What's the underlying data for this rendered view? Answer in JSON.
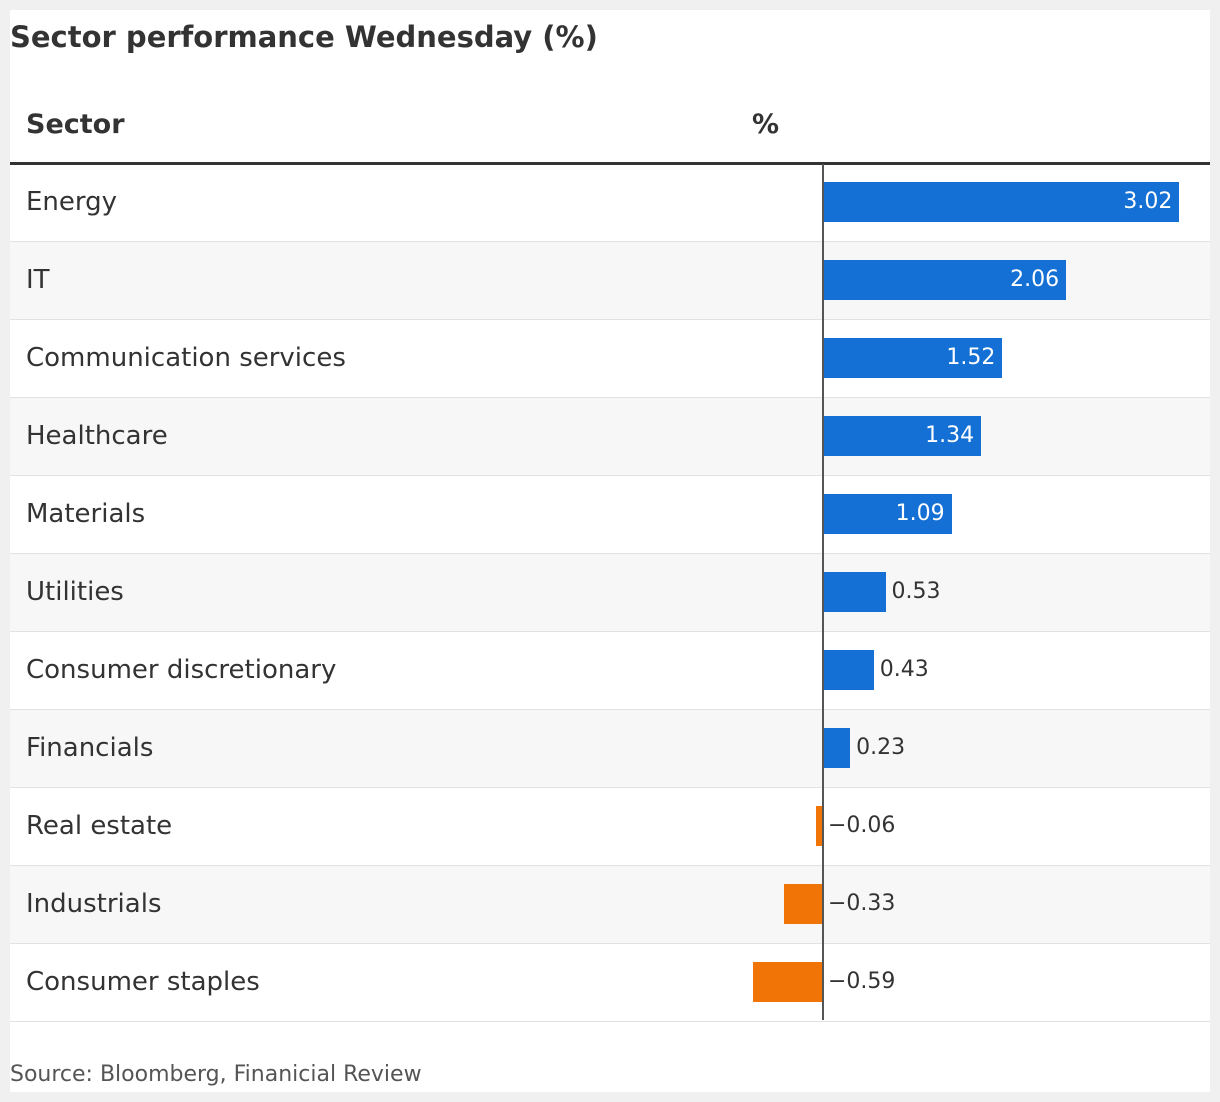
{
  "chart_data": {
    "type": "bar",
    "orientation": "horizontal",
    "title": "Sector performance Wednesday (%)",
    "column_headers": {
      "category": "Sector",
      "value": "%"
    },
    "categories": [
      "Energy",
      "IT",
      "Communication services",
      "Healthcare",
      "Materials",
      "Utilities",
      "Consumer discretionary",
      "Financials",
      "Real estate",
      "Industrials",
      "Consumer staples"
    ],
    "values": [
      3.02,
      2.06,
      1.52,
      1.34,
      1.09,
      0.53,
      0.43,
      0.23,
      -0.06,
      -0.33,
      -0.59
    ],
    "value_labels": [
      "3.02",
      "2.06",
      "1.52",
      "1.34",
      "1.09",
      "0.53",
      "0.43",
      "0.23",
      "−0.06",
      "−0.33",
      "−0.59"
    ],
    "xlim": [
      -0.59,
      3.02
    ],
    "colors": {
      "positive": "#1470d4",
      "negative": "#f07406"
    },
    "source": "Source: Bloomberg, Finanicial Review"
  }
}
